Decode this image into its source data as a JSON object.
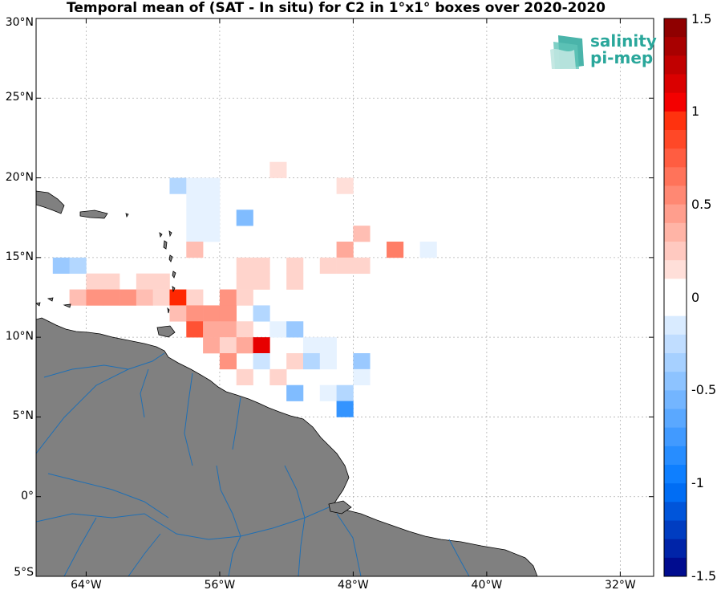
{
  "title": "Temporal mean of (SAT - In situ) for C2 in 1°x1° boxes over 2020-2020",
  "logo": {
    "line1": "salinity",
    "line2": "pi-mep",
    "color": "#2aa79b"
  },
  "colors": {
    "land": "#808080",
    "coast": "#000000",
    "river": "#1f6fb4",
    "grid": "#b0b0b0"
  },
  "map": {
    "lon_range": [
      -67,
      -30
    ],
    "lat_range": [
      -5,
      30
    ],
    "xticks": [
      {
        "lon": -64,
        "label": "64°W"
      },
      {
        "lon": -56,
        "label": "56°W"
      },
      {
        "lon": -48,
        "label": "48°W"
      },
      {
        "lon": -40,
        "label": "40°W"
      },
      {
        "lon": -32,
        "label": "32°W"
      }
    ],
    "yticks": [
      {
        "lat": 30,
        "label": "30°N"
      },
      {
        "lat": 25,
        "label": "25°N"
      },
      {
        "lat": 20,
        "label": "20°N"
      },
      {
        "lat": 15,
        "label": "15°N"
      },
      {
        "lat": 10,
        "label": "10°N"
      },
      {
        "lat": 5,
        "label": "5°N"
      },
      {
        "lat": 0,
        "label": "0°"
      },
      {
        "lat": -5,
        "label": "5°S"
      }
    ]
  },
  "colorbar": {
    "min": -1.5,
    "max": 1.5,
    "ticks": [
      {
        "value": 1.5,
        "label": "1.5"
      },
      {
        "value": 1.0,
        "label": "1"
      },
      {
        "value": 0.5,
        "label": "0.5"
      },
      {
        "value": 0,
        "label": "0"
      },
      {
        "value": -0.5,
        "label": "-0.5"
      },
      {
        "value": -1.0,
        "label": "-1"
      },
      {
        "value": -1.5,
        "label": "-1.5"
      }
    ]
  },
  "chart_data": {
    "type": "heatmap",
    "title": "Temporal mean of (SAT - In situ) for C2 in 1°x1° boxes over 2020-2020",
    "xlabel": "",
    "ylabel": "",
    "xlim": [
      -67,
      -30
    ],
    "ylim": [
      -5,
      30
    ],
    "vlim": [
      -1.5,
      1.5
    ],
    "cells": [
      {
        "lon": -59,
        "lat": 19,
        "v": -0.3
      },
      {
        "lon": -58,
        "lat": 19,
        "v": -0.1
      },
      {
        "lon": -57,
        "lat": 19,
        "v": -0.1
      },
      {
        "lon": -58,
        "lat": 18,
        "v": -0.1
      },
      {
        "lon": -57,
        "lat": 18,
        "v": -0.1
      },
      {
        "lon": -58,
        "lat": 17,
        "v": -0.1
      },
      {
        "lon": -57,
        "lat": 17,
        "v": -0.1
      },
      {
        "lon": -58,
        "lat": 16,
        "v": -0.1
      },
      {
        "lon": -57,
        "lat": 16,
        "v": -0.1
      },
      {
        "lon": -58,
        "lat": 15,
        "v": 0.3
      },
      {
        "lon": -55,
        "lat": 17,
        "v": -0.5
      },
      {
        "lon": -53,
        "lat": 20,
        "v": 0.15
      },
      {
        "lon": -49,
        "lat": 19,
        "v": 0.15
      },
      {
        "lon": -48,
        "lat": 16,
        "v": 0.3
      },
      {
        "lon": -49,
        "lat": 15,
        "v": 0.4
      },
      {
        "lon": -46,
        "lat": 15,
        "v": 0.6
      },
      {
        "lon": -44,
        "lat": 15,
        "v": -0.1
      },
      {
        "lon": -66,
        "lat": 14,
        "v": -0.4
      },
      {
        "lon": -65,
        "lat": 14,
        "v": -0.3
      },
      {
        "lon": -64,
        "lat": 13,
        "v": 0.2
      },
      {
        "lon": -63,
        "lat": 13,
        "v": 0.2
      },
      {
        "lon": -61,
        "lat": 13,
        "v": 0.2
      },
      {
        "lon": -60,
        "lat": 13,
        "v": 0.2
      },
      {
        "lon": -65,
        "lat": 12,
        "v": 0.3
      },
      {
        "lon": -64,
        "lat": 12,
        "v": 0.5
      },
      {
        "lon": -63,
        "lat": 12,
        "v": 0.5
      },
      {
        "lon": -62,
        "lat": 12,
        "v": 0.5
      },
      {
        "lon": -61,
        "lat": 12,
        "v": 0.3
      },
      {
        "lon": -60,
        "lat": 12,
        "v": 0.2
      },
      {
        "lon": -59,
        "lat": 12,
        "v": 1.0
      },
      {
        "lon": -58,
        "lat": 12,
        "v": 0.2
      },
      {
        "lon": -56,
        "lat": 12,
        "v": 0.5
      },
      {
        "lon": -55,
        "lat": 12,
        "v": 0.2
      },
      {
        "lon": -55,
        "lat": 14,
        "v": 0.2
      },
      {
        "lon": -54,
        "lat": 14,
        "v": 0.2
      },
      {
        "lon": -55,
        "lat": 13,
        "v": 0.2
      },
      {
        "lon": -54,
        "lat": 13,
        "v": 0.2
      },
      {
        "lon": -52,
        "lat": 14,
        "v": 0.2
      },
      {
        "lon": -52,
        "lat": 13,
        "v": 0.2
      },
      {
        "lon": -50,
        "lat": 14,
        "v": 0.2
      },
      {
        "lon": -49,
        "lat": 14,
        "v": 0.2
      },
      {
        "lon": -48,
        "lat": 14,
        "v": 0.2
      },
      {
        "lon": -59,
        "lat": 11,
        "v": 0.3
      },
      {
        "lon": -58,
        "lat": 11,
        "v": 0.5
      },
      {
        "lon": -57,
        "lat": 11,
        "v": 0.5
      },
      {
        "lon": -56,
        "lat": 11,
        "v": 0.5
      },
      {
        "lon": -54,
        "lat": 11,
        "v": -0.3
      },
      {
        "lon": -58,
        "lat": 10,
        "v": 0.8
      },
      {
        "lon": -57,
        "lat": 10,
        "v": 0.4
      },
      {
        "lon": -56,
        "lat": 10,
        "v": 0.4
      },
      {
        "lon": -55,
        "lat": 10,
        "v": 0.2
      },
      {
        "lon": -53,
        "lat": 10,
        "v": -0.1
      },
      {
        "lon": -52,
        "lat": 10,
        "v": -0.4
      },
      {
        "lon": -57,
        "lat": 9,
        "v": 0.4
      },
      {
        "lon": -56,
        "lat": 9,
        "v": 0.2
      },
      {
        "lon": -55,
        "lat": 9,
        "v": 0.4
      },
      {
        "lon": -54,
        "lat": 9,
        "v": 1.1
      },
      {
        "lon": -51,
        "lat": 9,
        "v": -0.1
      },
      {
        "lon": -50,
        "lat": 9,
        "v": -0.1
      },
      {
        "lon": -56,
        "lat": 8,
        "v": 0.5
      },
      {
        "lon": -54,
        "lat": 8,
        "v": -0.2
      },
      {
        "lon": -52,
        "lat": 8,
        "v": 0.2
      },
      {
        "lon": -51,
        "lat": 8,
        "v": -0.3
      },
      {
        "lon": -50,
        "lat": 8,
        "v": -0.1
      },
      {
        "lon": -48,
        "lat": 8,
        "v": -0.4
      },
      {
        "lon": -55,
        "lat": 7,
        "v": 0.2
      },
      {
        "lon": -53,
        "lat": 7,
        "v": 0.2
      },
      {
        "lon": -48,
        "lat": 7,
        "v": -0.1
      },
      {
        "lon": -52,
        "lat": 6,
        "v": -0.5
      },
      {
        "lon": -50,
        "lat": 6,
        "v": -0.1
      },
      {
        "lon": -49,
        "lat": 6,
        "v": -0.3
      },
      {
        "lon": -49,
        "lat": 5,
        "v": -0.8
      }
    ]
  }
}
